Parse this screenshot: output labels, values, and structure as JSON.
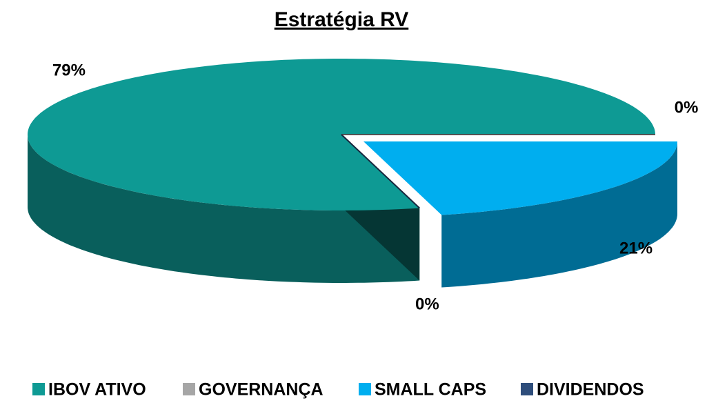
{
  "chart_data": {
    "type": "pie3d",
    "title": "Estratégia RV",
    "categories": [
      "IBOV ATIVO",
      "GOVERNANÇA",
      "SMALL CAPS",
      "DIVIDENDOS"
    ],
    "values": [
      79,
      0,
      21,
      0
    ],
    "value_labels": [
      "79%",
      "0%",
      "21%",
      "0%"
    ],
    "colors": [
      "#0e9a94",
      "#a6a6a6",
      "#00aeef",
      "#2e4d7b"
    ],
    "explode": [
      false,
      false,
      true,
      false
    ],
    "legend": "bottom"
  }
}
